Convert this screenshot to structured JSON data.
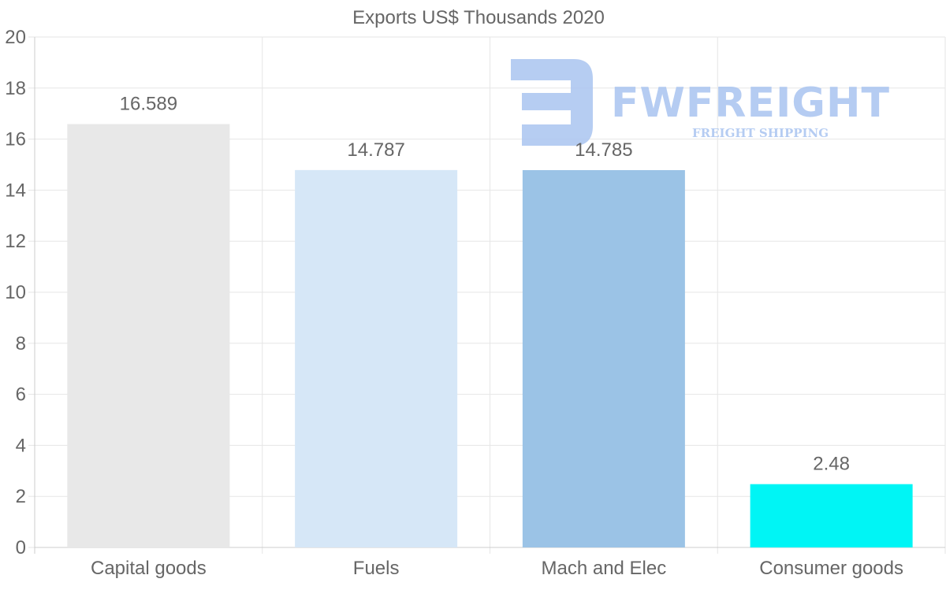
{
  "chart_data": {
    "type": "bar",
    "title": "Exports US$ Thousands 2020",
    "categories": [
      "Capital goods",
      "Fuels",
      "Mach and Elec",
      "Consumer goods"
    ],
    "values": [
      16.589,
      14.787,
      14.785,
      2.48
    ],
    "data_labels": [
      "16.589",
      "14.787",
      "14.785",
      "2.48"
    ],
    "colors": [
      "#e8e8e8",
      "#d6e7f7",
      "#9bc3e6",
      "#00f5f5"
    ],
    "ylim": [
      0,
      20
    ],
    "yticks": [
      0,
      2,
      4,
      6,
      8,
      10,
      12,
      14,
      16,
      18,
      20
    ],
    "xlabel": "",
    "ylabel": "",
    "grid": true
  },
  "watermark": {
    "brand": "FWFREIGHT",
    "tagline": "FREIGHT SHIPPING",
    "color": "#a9c4f0"
  }
}
